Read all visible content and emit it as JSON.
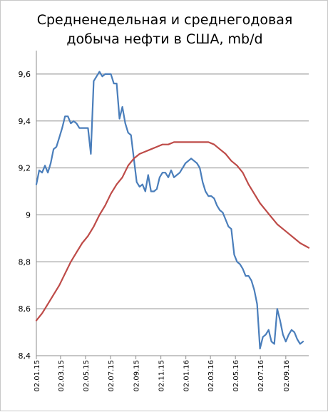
{
  "title": {
    "line1": "Средненедельная и среднегодовая",
    "line2": "добыча нефти в США, mb/d"
  },
  "chart_data": {
    "type": "line",
    "title": "Средненедельная и среднегодовая добыча нефти в США, mb/d",
    "ylim": [
      8.4,
      9.7
    ],
    "grid": true,
    "xlim": [
      "2015-01-02",
      "2016-10-28"
    ],
    "y_ticks": [
      "8,4",
      "8,6",
      "8,8",
      "9",
      "9,2",
      "9,4",
      "9,6"
    ],
    "y_tick_values": [
      8.4,
      8.6,
      8.8,
      9.0,
      9.2,
      9.4,
      9.6
    ],
    "x_ticks": [
      "02.01.15",
      "02.03.15",
      "02.05.15",
      "02.07.15",
      "02.09.15",
      "02.11.15",
      "02.01.16",
      "02.03.16",
      "02.05.16",
      "02.07.16",
      "02.09.16"
    ],
    "x_tick_dates": [
      "2015-01-02",
      "2015-03-02",
      "2015-05-02",
      "2015-07-02",
      "2015-09-02",
      "2015-11-02",
      "2016-01-02",
      "2016-03-02",
      "2016-05-02",
      "2016-07-02",
      "2016-09-02"
    ],
    "series": [
      {
        "color": "#4a7ebb",
        "points": [
          [
            "2015-01-02",
            9.13
          ],
          [
            "2015-01-09",
            9.19
          ],
          [
            "2015-01-16",
            9.18
          ],
          [
            "2015-01-23",
            9.21
          ],
          [
            "2015-01-30",
            9.18
          ],
          [
            "2015-02-06",
            9.22
          ],
          [
            "2015-02-13",
            9.28
          ],
          [
            "2015-02-20",
            9.29
          ],
          [
            "2015-02-27",
            9.33
          ],
          [
            "2015-03-06",
            9.37
          ],
          [
            "2015-03-13",
            9.42
          ],
          [
            "2015-03-20",
            9.42
          ],
          [
            "2015-03-27",
            9.39
          ],
          [
            "2015-04-03",
            9.4
          ],
          [
            "2015-04-10",
            9.39
          ],
          [
            "2015-04-17",
            9.37
          ],
          [
            "2015-04-24",
            9.37
          ],
          [
            "2015-05-01",
            9.37
          ],
          [
            "2015-05-08",
            9.37
          ],
          [
            "2015-05-15",
            9.26
          ],
          [
            "2015-05-22",
            9.57
          ],
          [
            "2015-05-29",
            9.59
          ],
          [
            "2015-06-05",
            9.61
          ],
          [
            "2015-06-12",
            9.59
          ],
          [
            "2015-06-19",
            9.6
          ],
          [
            "2015-06-26",
            9.6
          ],
          [
            "2015-07-03",
            9.6
          ],
          [
            "2015-07-10",
            9.56
          ],
          [
            "2015-07-17",
            9.56
          ],
          [
            "2015-07-24",
            9.41
          ],
          [
            "2015-07-31",
            9.46
          ],
          [
            "2015-08-07",
            9.39
          ],
          [
            "2015-08-14",
            9.35
          ],
          [
            "2015-08-21",
            9.34
          ],
          [
            "2015-08-28",
            9.24
          ],
          [
            "2015-09-04",
            9.14
          ],
          [
            "2015-09-11",
            9.12
          ],
          [
            "2015-09-18",
            9.13
          ],
          [
            "2015-09-25",
            9.1
          ],
          [
            "2015-10-02",
            9.17
          ],
          [
            "2015-10-09",
            9.1
          ],
          [
            "2015-10-16",
            9.1
          ],
          [
            "2015-10-23",
            9.11
          ],
          [
            "2015-10-30",
            9.16
          ],
          [
            "2015-11-06",
            9.18
          ],
          [
            "2015-11-13",
            9.18
          ],
          [
            "2015-11-20",
            9.16
          ],
          [
            "2015-11-27",
            9.19
          ],
          [
            "2015-12-04",
            9.16
          ],
          [
            "2015-12-11",
            9.17
          ],
          [
            "2015-12-18",
            9.18
          ],
          [
            "2015-12-25",
            9.2
          ],
          [
            "2016-01-01",
            9.22
          ],
          [
            "2016-01-08",
            9.23
          ],
          [
            "2016-01-15",
            9.24
          ],
          [
            "2016-01-22",
            9.23
          ],
          [
            "2016-01-29",
            9.22
          ],
          [
            "2016-02-05",
            9.2
          ],
          [
            "2016-02-12",
            9.14
          ],
          [
            "2016-02-19",
            9.1
          ],
          [
            "2016-02-26",
            9.08
          ],
          [
            "2016-03-04",
            9.08
          ],
          [
            "2016-03-11",
            9.07
          ],
          [
            "2016-03-18",
            9.04
          ],
          [
            "2016-03-25",
            9.02
          ],
          [
            "2016-04-01",
            9.01
          ],
          [
            "2016-04-08",
            8.98
          ],
          [
            "2016-04-15",
            8.95
          ],
          [
            "2016-04-22",
            8.94
          ],
          [
            "2016-04-29",
            8.83
          ],
          [
            "2016-05-06",
            8.8
          ],
          [
            "2016-05-13",
            8.79
          ],
          [
            "2016-05-20",
            8.77
          ],
          [
            "2016-05-27",
            8.74
          ],
          [
            "2016-06-03",
            8.74
          ],
          [
            "2016-06-10",
            8.72
          ],
          [
            "2016-06-17",
            8.68
          ],
          [
            "2016-06-24",
            8.62
          ],
          [
            "2016-07-01",
            8.43
          ],
          [
            "2016-07-08",
            8.48
          ],
          [
            "2016-07-15",
            8.49
          ],
          [
            "2016-07-22",
            8.51
          ],
          [
            "2016-07-29",
            8.46
          ],
          [
            "2016-08-05",
            8.45
          ],
          [
            "2016-08-12",
            8.6
          ],
          [
            "2016-08-19",
            8.55
          ],
          [
            "2016-08-26",
            8.49
          ],
          [
            "2016-09-02",
            8.46
          ],
          [
            "2016-09-09",
            8.49
          ],
          [
            "2016-09-16",
            8.51
          ],
          [
            "2016-09-23",
            8.5
          ],
          [
            "2016-09-30",
            8.47
          ],
          [
            "2016-10-07",
            8.45
          ],
          [
            "2016-10-14",
            8.46
          ]
        ]
      },
      {
        "color": "#be4b48",
        "points": [
          [
            "2015-01-02",
            8.55
          ],
          [
            "2015-01-16",
            8.58
          ],
          [
            "2015-01-30",
            8.62
          ],
          [
            "2015-02-13",
            8.66
          ],
          [
            "2015-02-27",
            8.7
          ],
          [
            "2015-03-13",
            8.75
          ],
          [
            "2015-03-27",
            8.8
          ],
          [
            "2015-04-10",
            8.84
          ],
          [
            "2015-04-24",
            8.88
          ],
          [
            "2015-05-08",
            8.91
          ],
          [
            "2015-05-22",
            8.95
          ],
          [
            "2015-06-05",
            9.0
          ],
          [
            "2015-06-19",
            9.04
          ],
          [
            "2015-07-03",
            9.09
          ],
          [
            "2015-07-17",
            9.13
          ],
          [
            "2015-07-31",
            9.16
          ],
          [
            "2015-08-14",
            9.21
          ],
          [
            "2015-08-28",
            9.24
          ],
          [
            "2015-09-11",
            9.26
          ],
          [
            "2015-09-25",
            9.27
          ],
          [
            "2015-10-09",
            9.28
          ],
          [
            "2015-10-23",
            9.29
          ],
          [
            "2015-11-06",
            9.3
          ],
          [
            "2015-11-20",
            9.3
          ],
          [
            "2015-12-04",
            9.31
          ],
          [
            "2015-12-18",
            9.31
          ],
          [
            "2016-01-01",
            9.31
          ],
          [
            "2016-01-15",
            9.31
          ],
          [
            "2016-01-29",
            9.31
          ],
          [
            "2016-02-12",
            9.31
          ],
          [
            "2016-02-26",
            9.31
          ],
          [
            "2016-03-11",
            9.3
          ],
          [
            "2016-03-25",
            9.28
          ],
          [
            "2016-04-08",
            9.26
          ],
          [
            "2016-04-22",
            9.23
          ],
          [
            "2016-05-06",
            9.21
          ],
          [
            "2016-05-20",
            9.18
          ],
          [
            "2016-06-03",
            9.13
          ],
          [
            "2016-06-17",
            9.09
          ],
          [
            "2016-07-01",
            9.05
          ],
          [
            "2016-07-15",
            9.02
          ],
          [
            "2016-07-29",
            8.99
          ],
          [
            "2016-08-12",
            8.96
          ],
          [
            "2016-08-26",
            8.94
          ],
          [
            "2016-09-09",
            8.92
          ],
          [
            "2016-09-23",
            8.9
          ],
          [
            "2016-10-07",
            8.88
          ],
          [
            "2016-10-28",
            8.86
          ]
        ]
      }
    ]
  }
}
